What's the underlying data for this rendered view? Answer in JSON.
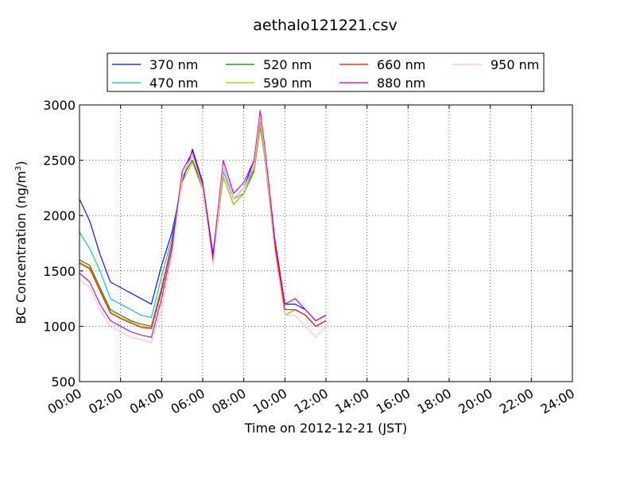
{
  "chart_data": {
    "type": "line",
    "title": "aethalo121221.csv",
    "xlabel": "Time on 2012-12-21 (JST)",
    "ylabel_main": "BC Concentration (ng/m",
    "ylabel_sup": "3",
    "ylabel_close": ")",
    "x_unit": "hours",
    "xlim": [
      0,
      24
    ],
    "ylim": [
      500,
      3000
    ],
    "grid": true,
    "legend_placement": "top-center",
    "xtick_values": [
      0,
      2,
      4,
      6,
      8,
      10,
      12,
      14,
      16,
      18,
      20,
      22,
      24
    ],
    "xtick_labels": [
      "00:00",
      "02:00",
      "04:00",
      "06:00",
      "08:00",
      "10:00",
      "12:00",
      "14:00",
      "16:00",
      "18:00",
      "20:00",
      "22:00",
      "24:00"
    ],
    "ytick_values": [
      500,
      1000,
      1500,
      2000,
      2500,
      3000
    ],
    "ytick_labels": [
      "500",
      "1000",
      "1500",
      "2000",
      "2500",
      "3000"
    ],
    "x": [
      0,
      0.5,
      1,
      1.5,
      2,
      2.5,
      3,
      3.5,
      4,
      4.5,
      5,
      5.5,
      6,
      6.5,
      7,
      7.5,
      8,
      8.5,
      8.8,
      9,
      9.5,
      10,
      10.5,
      11,
      11.5,
      12
    ],
    "series": [
      {
        "name": "370 nm",
        "color": "#0000ff",
        "values": [
          2150,
          1950,
          1650,
          1400,
          1350,
          1300,
          1250,
          1200,
          1550,
          1850,
          2300,
          2600,
          2300,
          1650,
          2450,
          2150,
          2250,
          2500,
          2900,
          2650,
          1800,
          1200,
          1200,
          1150,
          1050,
          1100
        ]
      },
      {
        "name": "470 nm",
        "color": "#00bfbf",
        "values": [
          1850,
          1700,
          1500,
          1250,
          1200,
          1150,
          1100,
          1080,
          1450,
          1800,
          2350,
          2550,
          2250,
          1600,
          2400,
          2150,
          2200,
          2450,
          2850,
          2600,
          1750,
          1150,
          1150,
          1100,
          1000,
          1050
        ]
      },
      {
        "name": "520 nm",
        "color": "#008000",
        "values": [
          1600,
          1550,
          1350,
          1150,
          1100,
          1050,
          1020,
          1000,
          1350,
          1750,
          2350,
          2500,
          2250,
          1600,
          2350,
          2100,
          2200,
          2400,
          2800,
          2550,
          1700,
          1100,
          1150,
          1100,
          1000,
          1050
        ]
      },
      {
        "name": "590 nm",
        "color": "#bfbf00",
        "values": [
          1580,
          1530,
          1330,
          1130,
          1080,
          1040,
          1000,
          990,
          1330,
          1750,
          2300,
          2480,
          2230,
          1580,
          2350,
          2100,
          2200,
          2420,
          2820,
          2560,
          1700,
          1100,
          1150,
          1100,
          1000,
          1050
        ]
      },
      {
        "name": "660 nm",
        "color": "#ff0000",
        "values": [
          1570,
          1520,
          1320,
          1120,
          1070,
          1030,
          990,
          980,
          1320,
          1750,
          2350,
          2550,
          2250,
          1600,
          2450,
          2150,
          2250,
          2450,
          2900,
          2600,
          1750,
          1150,
          1150,
          1100,
          1000,
          1050
        ]
      },
      {
        "name": "880 nm",
        "color": "#bf00bf",
        "values": [
          1480,
          1400,
          1200,
          1050,
          1000,
          950,
          920,
          900,
          1250,
          1700,
          2400,
          2580,
          2280,
          1620,
          2500,
          2200,
          2300,
          2500,
          2950,
          2650,
          1800,
          1200,
          1250,
          1150,
          1050,
          1100
        ]
      },
      {
        "name": "950 nm",
        "color": "#ffc0cb",
        "values": [
          1420,
          1350,
          1150,
          1000,
          950,
          900,
          880,
          850,
          1150,
          1650,
          2350,
          2550,
          2250,
          1550,
          2450,
          2150,
          2250,
          2450,
          2900,
          2600,
          1700,
          1100,
          1100,
          1000,
          900,
          1000
        ]
      }
    ]
  }
}
